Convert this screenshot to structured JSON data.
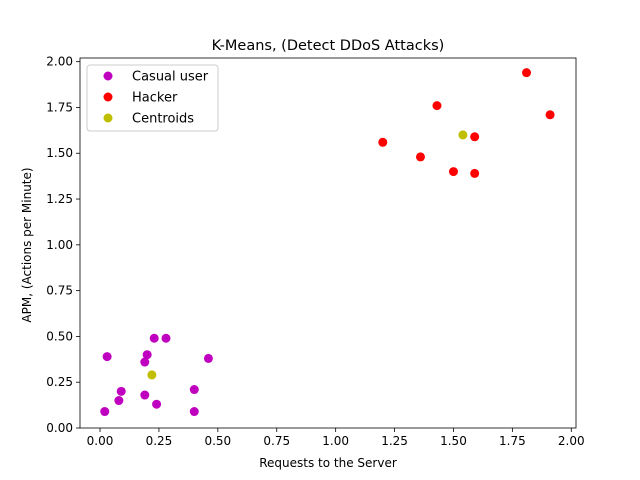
{
  "chart_data": {
    "type": "scatter",
    "title": "K-Means, (Detect DDoS Attacks)",
    "xlabel": "Requests to the Server",
    "ylabel": "APM, (Actions per Minute)",
    "xlim": [
      -0.085,
      2.02
    ],
    "ylim": [
      0.0,
      2.02
    ],
    "xticks": [
      "0.00",
      "0.25",
      "0.50",
      "0.75",
      "1.00",
      "1.25",
      "1.50",
      "1.75",
      "2.00"
    ],
    "yticks": [
      "0.00",
      "0.25",
      "0.50",
      "0.75",
      "1.00",
      "1.25",
      "1.50",
      "1.75",
      "2.00"
    ],
    "grid": false,
    "legend_position": "top-left",
    "series": [
      {
        "name": "Casual user",
        "color": "#bf00bf",
        "points": [
          [
            0.02,
            0.09
          ],
          [
            0.03,
            0.39
          ],
          [
            0.08,
            0.15
          ],
          [
            0.09,
            0.2
          ],
          [
            0.19,
            0.36
          ],
          [
            0.19,
            0.18
          ],
          [
            0.2,
            0.4
          ],
          [
            0.23,
            0.49
          ],
          [
            0.24,
            0.13
          ],
          [
            0.28,
            0.49
          ],
          [
            0.4,
            0.21
          ],
          [
            0.4,
            0.09
          ],
          [
            0.46,
            0.38
          ]
        ]
      },
      {
        "name": "Hacker",
        "color": "#ff0000",
        "points": [
          [
            1.2,
            1.56
          ],
          [
            1.36,
            1.48
          ],
          [
            1.43,
            1.76
          ],
          [
            1.5,
            1.4
          ],
          [
            1.59,
            1.59
          ],
          [
            1.59,
            1.39
          ],
          [
            1.81,
            1.94
          ],
          [
            1.91,
            1.71
          ]
        ]
      },
      {
        "name": "Centroids",
        "color": "#bfbf00",
        "points": [
          [
            0.22,
            0.29
          ],
          [
            1.54,
            1.6
          ]
        ]
      }
    ]
  }
}
